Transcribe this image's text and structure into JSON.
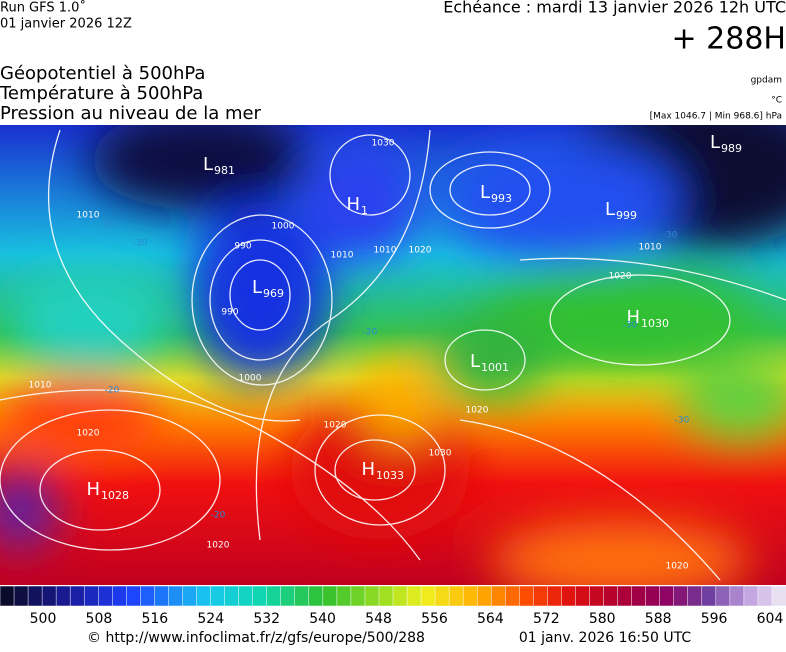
{
  "header": {
    "model": "Run GFS 1.0˚",
    "run": "01 janvier 2026 12Z",
    "valid": "Echéance : mardi 13 janvier 2026 12h UTC",
    "lead": "+ 288H"
  },
  "titles": [
    "Géopotentiel à 500hPa",
    "Température à 500hPa",
    "Pression au niveau de la mer"
  ],
  "units": [
    "gpdam",
    "°C",
    "[Max 1046.7 | Min 968.6] hPa"
  ],
  "centers": [
    {
      "type": "L",
      "value": "981"
    },
    {
      "type": "L",
      "value": "969"
    },
    {
      "type": "H",
      "value": "1"
    },
    {
      "type": "L",
      "value": "993"
    },
    {
      "type": "L",
      "value": "999"
    },
    {
      "type": "L",
      "value": "989"
    },
    {
      "type": "H",
      "value": "1030"
    },
    {
      "type": "L",
      "value": "1001"
    },
    {
      "type": "H",
      "value": "1033"
    },
    {
      "type": "H",
      "value": "1028"
    }
  ],
  "isobar_labels": [
    "1030",
    "1010",
    "990",
    "1000",
    "1020",
    "1010",
    "1000",
    "990",
    "1010",
    "1020",
    "1020",
    "1010",
    "1020",
    "1030",
    "1020",
    "1020",
    "1010",
    "1020"
  ],
  "temperature_labels": [
    "-30",
    "-30",
    "-30",
    "-30",
    "-20",
    "-20",
    "-20",
    "-30"
  ],
  "colorbar": {
    "labels": [
      500,
      508,
      516,
      524,
      532,
      540,
      548,
      556,
      564,
      572,
      580,
      588,
      596,
      604
    ]
  },
  "footer": {
    "source": "© http://www.infoclimat.fr/z/gfs/europe/500/288",
    "generated": "01 janv. 2026 16:50 UTC"
  }
}
